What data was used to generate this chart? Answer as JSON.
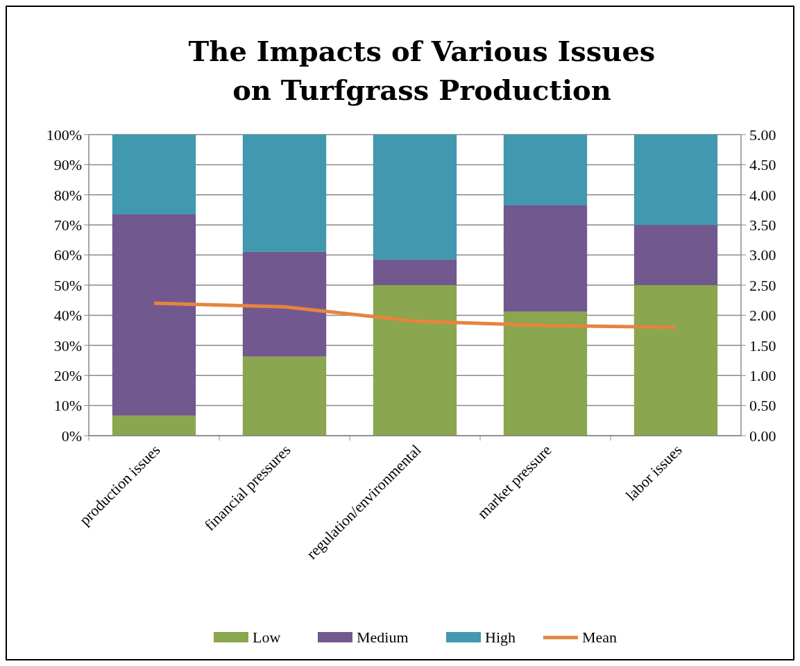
{
  "chart_data": {
    "type": "bar",
    "title": "The Impacts of Various Issues on Turfgrass Production",
    "stacked": true,
    "categories": [
      "production issues",
      "financial pressures",
      "regulation/environmental",
      "market pressure",
      "labor issues"
    ],
    "series": [
      {
        "name": "Low",
        "color": "#8aa64e",
        "values": [
          6.7,
          26.3,
          50,
          41.2,
          50
        ]
      },
      {
        "name": "Medium",
        "color": "#71588f",
        "values": [
          66.8,
          34.8,
          8.5,
          35.3,
          20
        ]
      },
      {
        "name": "High",
        "color": "#4198af",
        "values": [
          26.5,
          38.9,
          41.5,
          23.5,
          30
        ]
      },
      {
        "name": "Mean",
        "type": "line",
        "axis": "y2",
        "color": "#e6843f",
        "values": [
          2.2,
          2.14,
          1.9,
          1.83,
          1.8
        ]
      }
    ],
    "ylim": [
      0,
      100
    ],
    "yticks": [
      {
        "value": 0,
        "label": "0%"
      },
      {
        "value": 10,
        "label": "10%"
      },
      {
        "value": 20,
        "label": "20%"
      },
      {
        "value": 30,
        "label": "30%"
      },
      {
        "value": 40,
        "label": "40%"
      },
      {
        "value": 50,
        "label": "50%"
      },
      {
        "value": 60,
        "label": "60%"
      },
      {
        "value": 70,
        "label": "70%"
      },
      {
        "value": 80,
        "label": "80%"
      },
      {
        "value": 90,
        "label": "90%"
      },
      {
        "value": 100,
        "label": "100%"
      }
    ],
    "y2lim": [
      0,
      5
    ],
    "y2ticks": [
      {
        "value": 0,
        "label": "0.00"
      },
      {
        "value": 0.5,
        "label": "0.50"
      },
      {
        "value": 1,
        "label": "1.00"
      },
      {
        "value": 1.5,
        "label": "1.50"
      },
      {
        "value": 2,
        "label": "2.00"
      },
      {
        "value": 2.5,
        "label": "2.50"
      },
      {
        "value": 3,
        "label": "3.00"
      },
      {
        "value": 3.5,
        "label": "3.50"
      },
      {
        "value": 4,
        "label": "4.00"
      },
      {
        "value": 4.5,
        "label": "4.50"
      },
      {
        "value": 5,
        "label": "5.00"
      }
    ],
    "grid": "y",
    "legend": "bottom",
    "marker": "none"
  }
}
